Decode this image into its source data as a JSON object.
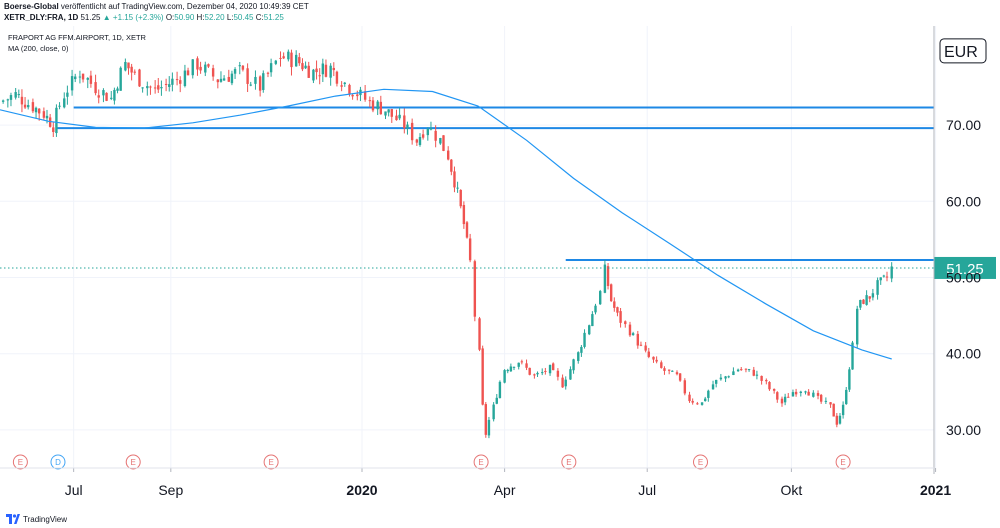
{
  "header": {
    "publisher": "Boerse-Global",
    "published_text": "veröffentlicht auf TradingView.com, Dezember 04, 2020 10:49:39 CET",
    "symbol": "XETR_DLY:FRA, 1D",
    "last": "51.25",
    "change": "+1.15 (+2.3%)",
    "o_label": "O:",
    "o": "50.90",
    "h_label": "H:",
    "h": "52.20",
    "l_label": "L:",
    "l": "50.45",
    "c_label": "C:",
    "c": "51.25"
  },
  "legend": {
    "instrument": "FRAPORT AG FFM.AIRPORT, 1D, XETR",
    "indicator": "MA (200, close, 0)"
  },
  "brand": "TradingView",
  "colors": {
    "up": "#26a69a",
    "down": "#ef5350",
    "ma": "#2196f3",
    "hline": "#1e88e5",
    "price_tag": "#26a69a",
    "grid": "#f0f3fa",
    "axis_text": "#131722",
    "event_border": "#e57373",
    "div_border": "#42a5f5"
  },
  "chart_data": {
    "type": "candlestick",
    "currency_label": "EUR",
    "y_ticks": [
      "70.00",
      "60.00",
      "50.00",
      "40.00",
      "30.00"
    ],
    "ylim": [
      25,
      83
    ],
    "x_tick_labels": [
      "Jul",
      "Sep",
      "2020",
      "Apr",
      "Jul",
      "Okt",
      "2021"
    ],
    "x_start": "2019-05-15",
    "x_end": "2020-12-31",
    "last_price": 51.25,
    "last_price_label": "51.25",
    "close_series": [
      {
        "date": "2019-05-15",
        "value": 73.0
      },
      {
        "date": "2019-05-25",
        "value": 74.0
      },
      {
        "date": "2019-06-05",
        "value": 72.5
      },
      {
        "date": "2019-06-12",
        "value": 71.5
      },
      {
        "date": "2019-06-18",
        "value": 70.0
      },
      {
        "date": "2019-06-25",
        "value": 74.0
      },
      {
        "date": "2019-07-05",
        "value": 77.0
      },
      {
        "date": "2019-07-15",
        "value": 75.0
      },
      {
        "date": "2019-07-25",
        "value": 73.5
      },
      {
        "date": "2019-08-03",
        "value": 78.0
      },
      {
        "date": "2019-08-12",
        "value": 76.0
      },
      {
        "date": "2019-08-22",
        "value": 74.5
      },
      {
        "date": "2019-09-05",
        "value": 76.0
      },
      {
        "date": "2019-09-18",
        "value": 78.0
      },
      {
        "date": "2019-10-01",
        "value": 76.0
      },
      {
        "date": "2019-10-15",
        "value": 77.0
      },
      {
        "date": "2019-10-28",
        "value": 75.0
      },
      {
        "date": "2019-11-10",
        "value": 79.0
      },
      {
        "date": "2019-11-20",
        "value": 78.5
      },
      {
        "date": "2019-12-01",
        "value": 77.0
      },
      {
        "date": "2019-12-12",
        "value": 77.5
      },
      {
        "date": "2019-12-24",
        "value": 75.0
      },
      {
        "date": "2020-01-06",
        "value": 73.0
      },
      {
        "date": "2020-01-16",
        "value": 72.0
      },
      {
        "date": "2020-01-28",
        "value": 70.0
      },
      {
        "date": "2020-02-05",
        "value": 68.0
      },
      {
        "date": "2020-02-12",
        "value": 70.0
      },
      {
        "date": "2020-02-20",
        "value": 68.0
      },
      {
        "date": "2020-02-25",
        "value": 66.0
      },
      {
        "date": "2020-03-02",
        "value": 61.0
      },
      {
        "date": "2020-03-06",
        "value": 57.0
      },
      {
        "date": "2020-03-10",
        "value": 52.0
      },
      {
        "date": "2020-03-13",
        "value": 45.0
      },
      {
        "date": "2020-03-16",
        "value": 40.0
      },
      {
        "date": "2020-03-18",
        "value": 33.0
      },
      {
        "date": "2020-03-20",
        "value": 29.5
      },
      {
        "date": "2020-03-25",
        "value": 33.0
      },
      {
        "date": "2020-04-01",
        "value": 38.0
      },
      {
        "date": "2020-04-10",
        "value": 39.0
      },
      {
        "date": "2020-04-20",
        "value": 37.0
      },
      {
        "date": "2020-04-30",
        "value": 38.0
      },
      {
        "date": "2020-05-08",
        "value": 36.0
      },
      {
        "date": "2020-05-18",
        "value": 40.0
      },
      {
        "date": "2020-05-25",
        "value": 44.0
      },
      {
        "date": "2020-06-01",
        "value": 48.0
      },
      {
        "date": "2020-06-04",
        "value": 51.0
      },
      {
        "date": "2020-06-08",
        "value": 47.0
      },
      {
        "date": "2020-06-12",
        "value": 45.0
      },
      {
        "date": "2020-06-20",
        "value": 43.0
      },
      {
        "date": "2020-06-30",
        "value": 40.0
      },
      {
        "date": "2020-07-10",
        "value": 38.0
      },
      {
        "date": "2020-07-20",
        "value": 37.0
      },
      {
        "date": "2020-07-28",
        "value": 34.0
      },
      {
        "date": "2020-08-05",
        "value": 33.5
      },
      {
        "date": "2020-08-12",
        "value": 36.0
      },
      {
        "date": "2020-08-20",
        "value": 37.0
      },
      {
        "date": "2020-08-28",
        "value": 38.0
      },
      {
        "date": "2020-09-07",
        "value": 37.5
      },
      {
        "date": "2020-09-15",
        "value": 36.0
      },
      {
        "date": "2020-09-25",
        "value": 33.5
      },
      {
        "date": "2020-10-02",
        "value": 35.0
      },
      {
        "date": "2020-10-10",
        "value": 35.5
      },
      {
        "date": "2020-10-18",
        "value": 34.0
      },
      {
        "date": "2020-10-26",
        "value": 33.0
      },
      {
        "date": "2020-10-30",
        "value": 31.0
      },
      {
        "date": "2020-11-03",
        "value": 33.0
      },
      {
        "date": "2020-11-09",
        "value": 41.0
      },
      {
        "date": "2020-11-12",
        "value": 46.0
      },
      {
        "date": "2020-11-16",
        "value": 47.0
      },
      {
        "date": "2020-11-20",
        "value": 47.5
      },
      {
        "date": "2020-11-25",
        "value": 49.0
      },
      {
        "date": "2020-12-01",
        "value": 50.0
      },
      {
        "date": "2020-12-04",
        "value": 51.25
      }
    ],
    "ma200": [
      {
        "date": "2019-05-15",
        "value": 72.0
      },
      {
        "date": "2019-06-15",
        "value": 70.5
      },
      {
        "date": "2019-07-15",
        "value": 69.7
      },
      {
        "date": "2019-08-15",
        "value": 69.6
      },
      {
        "date": "2019-09-15",
        "value": 70.3
      },
      {
        "date": "2019-10-15",
        "value": 71.3
      },
      {
        "date": "2019-11-15",
        "value": 72.5
      },
      {
        "date": "2019-12-15",
        "value": 73.8
      },
      {
        "date": "2020-01-15",
        "value": 74.7
      },
      {
        "date": "2020-02-15",
        "value": 74.4
      },
      {
        "date": "2020-03-15",
        "value": 72.5
      },
      {
        "date": "2020-04-15",
        "value": 68.0
      },
      {
        "date": "2020-05-15",
        "value": 63.0
      },
      {
        "date": "2020-06-15",
        "value": 58.5
      },
      {
        "date": "2020-07-15",
        "value": 54.5
      },
      {
        "date": "2020-08-15",
        "value": 50.3
      },
      {
        "date": "2020-09-15",
        "value": 46.5
      },
      {
        "date": "2020-10-15",
        "value": 43.0
      },
      {
        "date": "2020-11-15",
        "value": 40.5
      },
      {
        "date": "2020-12-04",
        "value": 39.3
      }
    ],
    "horizontal_lines": [
      {
        "value": 72.3,
        "from": "2019-07-01",
        "to": "2020-12-31"
      },
      {
        "value": 69.6,
        "from": "2019-06-20",
        "to": "2020-12-31"
      },
      {
        "value": 52.3,
        "from": "2020-05-10",
        "to": "2020-12-31"
      }
    ],
    "event_markers": [
      {
        "date": "2019-05-28",
        "label": "E",
        "kind": "earnings"
      },
      {
        "date": "2019-06-21",
        "label": "D",
        "kind": "dividend"
      },
      {
        "date": "2019-08-08",
        "label": "E",
        "kind": "earnings"
      },
      {
        "date": "2019-11-04",
        "label": "E",
        "kind": "earnings"
      },
      {
        "date": "2020-03-17",
        "label": "E",
        "kind": "earnings"
      },
      {
        "date": "2020-05-12",
        "label": "E",
        "kind": "earnings"
      },
      {
        "date": "2020-08-04",
        "label": "E",
        "kind": "earnings"
      },
      {
        "date": "2020-11-03",
        "label": "E",
        "kind": "earnings"
      }
    ]
  }
}
